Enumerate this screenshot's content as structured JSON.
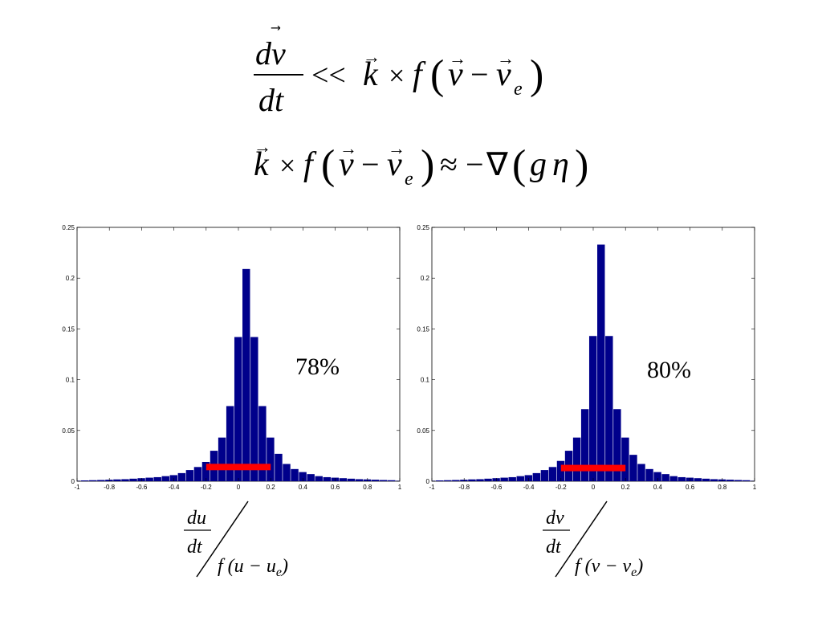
{
  "equations": {
    "line1": {
      "lhs_num": "dv",
      "lhs_den": "dt",
      "relation": "<<",
      "rhs": "k × f(v − v_e)"
    },
    "line2": {
      "lhs": "k × f(v − v_e)",
      "relation": "≈",
      "rhs": "−∇(gη)"
    }
  },
  "chart_data": [
    {
      "type": "bar",
      "xlim": [
        -1,
        1
      ],
      "ylim": [
        0,
        0.25
      ],
      "xticks": [
        "-1",
        "-0.8",
        "-0.6",
        "-0.4",
        "-0.2",
        "0",
        "0.2",
        "0.4",
        "0.6",
        "0.8",
        "1"
      ],
      "yticks": [
        "0",
        "0.05",
        "0.1",
        "0.15",
        "0.2",
        "0.25"
      ],
      "bin_width": 0.05,
      "x": [
        -1.0,
        -0.95,
        -0.9,
        -0.85,
        -0.8,
        -0.75,
        -0.7,
        -0.65,
        -0.6,
        -0.55,
        -0.5,
        -0.45,
        -0.4,
        -0.35,
        -0.3,
        -0.25,
        -0.2,
        -0.15,
        -0.1,
        -0.05,
        0,
        0.05,
        0.1,
        0.15,
        0.2,
        0.25,
        0.3,
        0.35,
        0.4,
        0.45,
        0.5,
        0.55,
        0.6,
        0.65,
        0.7,
        0.75,
        0.8,
        0.85,
        0.9,
        0.95,
        1.0
      ],
      "values": [
        0.0005,
        0.0008,
        0.001,
        0.0012,
        0.0015,
        0.0018,
        0.002,
        0.0025,
        0.003,
        0.0035,
        0.004,
        0.005,
        0.006,
        0.008,
        0.011,
        0.014,
        0.019,
        0.03,
        0.043,
        0.074,
        0.142,
        0.209,
        0.142,
        0.074,
        0.043,
        0.027,
        0.017,
        0.012,
        0.009,
        0.007,
        0.005,
        0.004,
        0.0035,
        0.003,
        0.0025,
        0.002,
        0.0018,
        0.0015,
        0.0012,
        0.001,
        0.0005
      ],
      "highlight_range": [
        -0.2,
        0.2
      ],
      "highlight_level": 0.014,
      "bar_color": "#00008B",
      "highlight_color": "#ff0000",
      "annotation": "78%",
      "xlabel": {
        "num": "du",
        "den": "dt",
        "divisor": "f(u − u_e)"
      }
    },
    {
      "type": "bar",
      "xlim": [
        -1,
        1
      ],
      "ylim": [
        0,
        0.25
      ],
      "xticks": [
        "-1",
        "-0.8",
        "-0.6",
        "-0.4",
        "-0.2",
        "0",
        "0.2",
        "0.4",
        "0.6",
        "0.8",
        "1"
      ],
      "yticks": [
        "0",
        "0.05",
        "0.1",
        "0.15",
        "0.2",
        "0.25"
      ],
      "bin_width": 0.05,
      "x": [
        -1.0,
        -0.95,
        -0.9,
        -0.85,
        -0.8,
        -0.75,
        -0.7,
        -0.65,
        -0.6,
        -0.55,
        -0.5,
        -0.45,
        -0.4,
        -0.35,
        -0.3,
        -0.25,
        -0.2,
        -0.15,
        -0.1,
        -0.05,
        0,
        0.05,
        0.1,
        0.15,
        0.2,
        0.25,
        0.3,
        0.35,
        0.4,
        0.45,
        0.5,
        0.55,
        0.6,
        0.65,
        0.7,
        0.75,
        0.8,
        0.85,
        0.9,
        0.95,
        1.0
      ],
      "values": [
        0.0005,
        0.0008,
        0.001,
        0.0012,
        0.0015,
        0.0018,
        0.002,
        0.0025,
        0.003,
        0.0035,
        0.004,
        0.005,
        0.006,
        0.008,
        0.011,
        0.014,
        0.02,
        0.03,
        0.043,
        0.071,
        0.143,
        0.233,
        0.143,
        0.071,
        0.043,
        0.026,
        0.017,
        0.012,
        0.009,
        0.007,
        0.005,
        0.004,
        0.0035,
        0.003,
        0.0025,
        0.002,
        0.0018,
        0.0015,
        0.0012,
        0.001,
        0.0005
      ],
      "highlight_range": [
        -0.2,
        0.2
      ],
      "highlight_level": 0.013,
      "bar_color": "#00008B",
      "highlight_color": "#ff0000",
      "annotation": "80%",
      "xlabel": {
        "num": "dv",
        "den": "dt",
        "divisor": "f(v − v_e)"
      }
    }
  ]
}
